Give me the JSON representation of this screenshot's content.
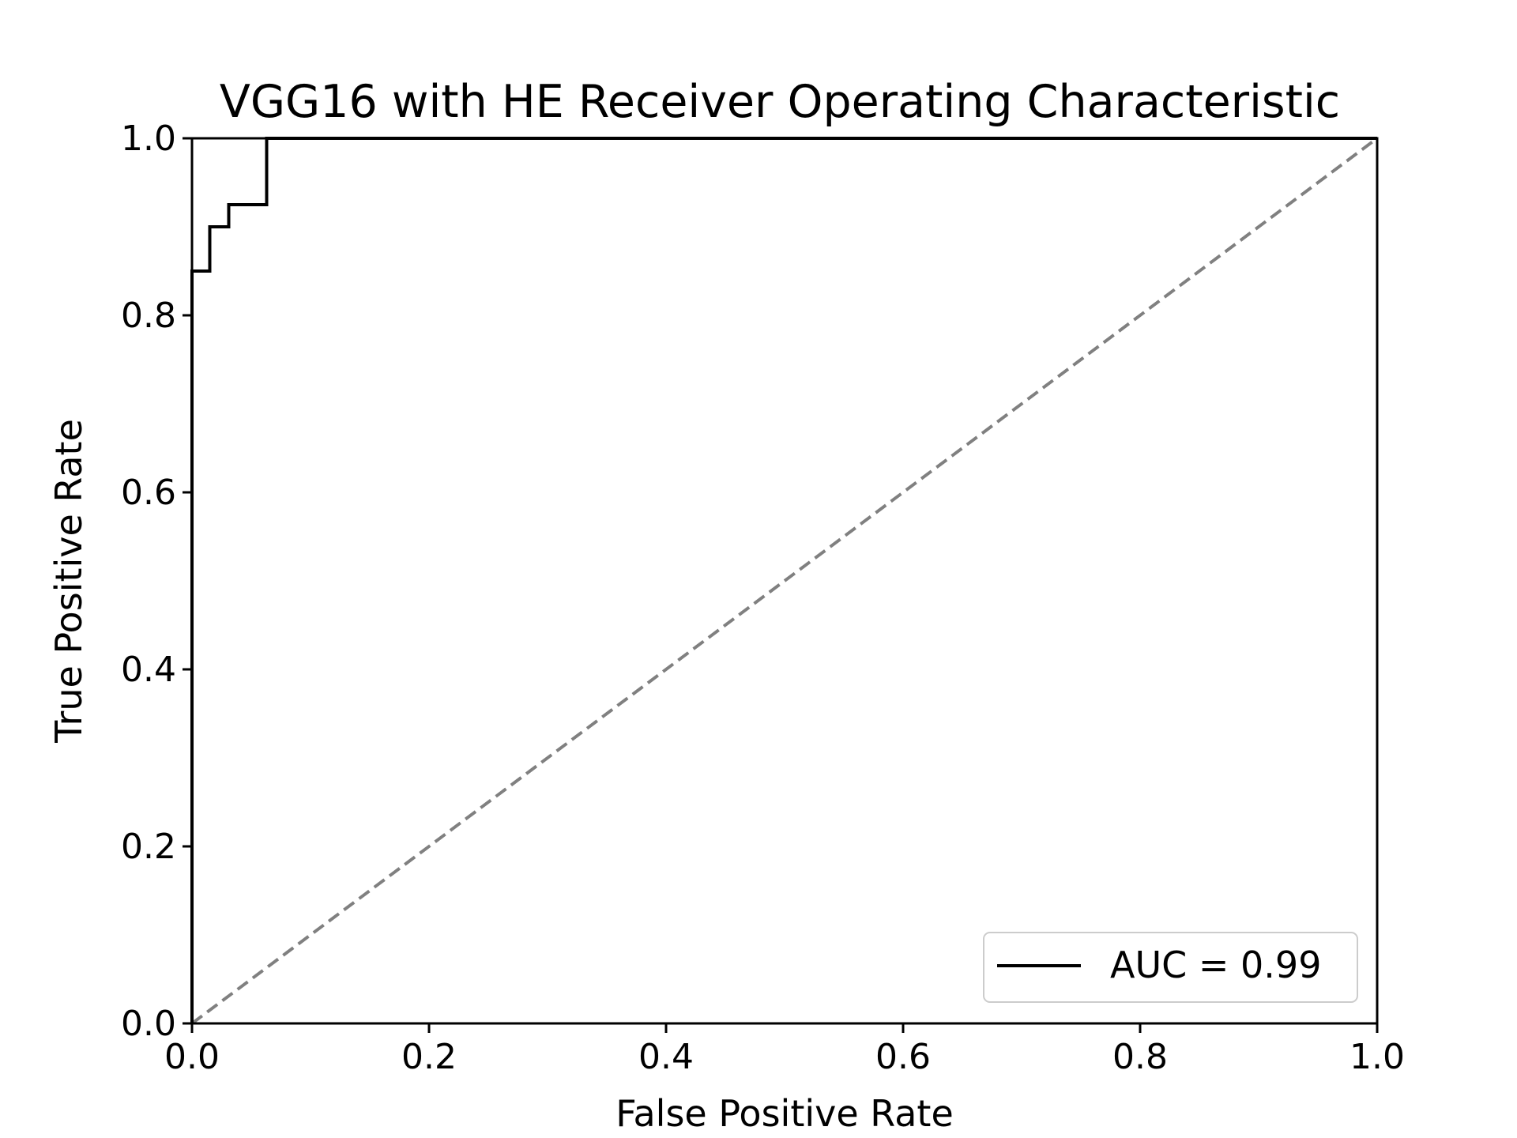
{
  "chart_data": {
    "type": "line",
    "title": "VGG16 with HE Receiver Operating Characteristic",
    "xlabel": "False Positive Rate",
    "ylabel": "True Positive Rate",
    "xlim": [
      0.0,
      1.0
    ],
    "ylim": [
      0.0,
      1.0
    ],
    "x_ticks": [
      "0.0",
      "0.2",
      "0.4",
      "0.6",
      "0.8",
      "1.0"
    ],
    "y_ticks": [
      "0.0",
      "0.2",
      "0.4",
      "0.6",
      "0.8",
      "1.0"
    ],
    "grid": false,
    "legend_position": "lower-right",
    "series": [
      {
        "name": "AUC = 0.99",
        "color": "#000000",
        "style": "solid",
        "x": [
          0.0,
          0.0,
          0.015,
          0.015,
          0.031,
          0.031,
          0.063,
          0.063,
          1.0
        ],
        "y": [
          0.0,
          0.85,
          0.85,
          0.9,
          0.9,
          0.925,
          0.925,
          1.0,
          1.0
        ]
      },
      {
        "color": "#808080",
        "style": "dashed",
        "x": [
          0.0,
          1.0
        ],
        "y": [
          0.0,
          1.0
        ]
      }
    ]
  }
}
